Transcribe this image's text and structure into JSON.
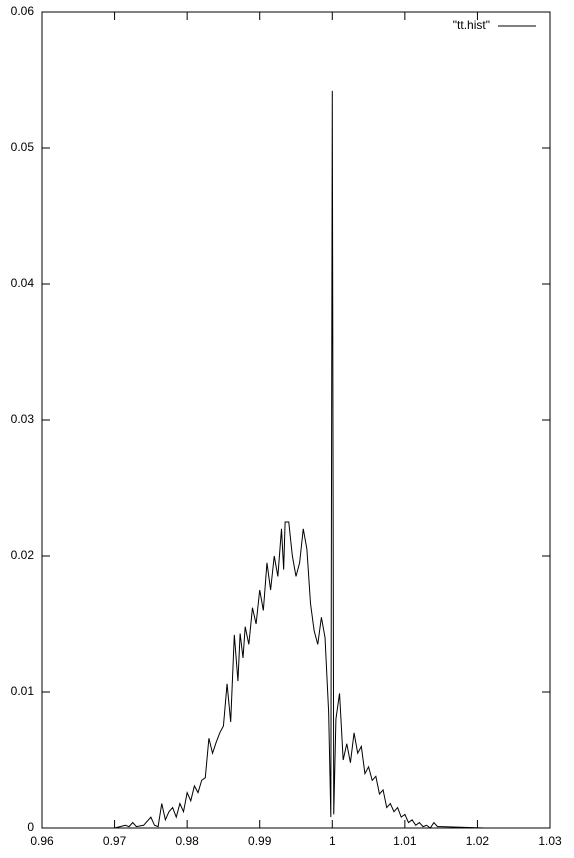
{
  "chart_data": {
    "type": "line",
    "x": [
      0.9672,
      0.97,
      0.9715,
      0.972,
      0.9725,
      0.973,
      0.974,
      0.975,
      0.9755,
      0.976,
      0.9765,
      0.977,
      0.9775,
      0.978,
      0.9785,
      0.979,
      0.9795,
      0.98,
      0.9805,
      0.981,
      0.9815,
      0.982,
      0.9825,
      0.983,
      0.9835,
      0.984,
      0.9845,
      0.985,
      0.9855,
      0.986,
      0.9865,
      0.987,
      0.9873,
      0.9877,
      0.988,
      0.9885,
      0.989,
      0.9895,
      0.99,
      0.9905,
      0.991,
      0.9915,
      0.992,
      0.9925,
      0.993,
      0.9933,
      0.9935,
      0.994,
      0.9945,
      0.995,
      0.9955,
      0.996,
      0.9965,
      0.997,
      0.9975,
      0.998,
      0.9985,
      0.999,
      0.9995,
      0.9998,
      1.0,
      1.0002,
      1.0005,
      1.001,
      1.0015,
      1.002,
      1.0025,
      1.003,
      1.0035,
      1.004,
      1.0045,
      1.005,
      1.0055,
      1.006,
      1.0065,
      1.007,
      1.0075,
      1.008,
      1.0085,
      1.009,
      1.0095,
      1.01,
      1.0105,
      1.011,
      1.0115,
      1.012,
      1.0125,
      1.013,
      1.0135,
      1.014,
      1.0145,
      1.015,
      1.021
    ],
    "series": [
      {
        "name": "\"tt.hist\"",
        "color": "#000000",
        "values": [
          0,
          0,
          0.0002,
          0.0001,
          0.0004,
          0.0001,
          0.0002,
          0.0008,
          0.0002,
          0.0001,
          0.0018,
          0.0006,
          0.0012,
          0.0015,
          0.0008,
          0.0018,
          0.0012,
          0.0026,
          0.002,
          0.0031,
          0.0026,
          0.0035,
          0.0037,
          0.0066,
          0.0055,
          0.0063,
          0.007,
          0.0075,
          0.0106,
          0.0078,
          0.0142,
          0.0108,
          0.0143,
          0.0125,
          0.0148,
          0.0135,
          0.0162,
          0.015,
          0.0175,
          0.016,
          0.0195,
          0.0175,
          0.02,
          0.0185,
          0.022,
          0.019,
          0.0225,
          0.0225,
          0.02,
          0.0185,
          0.0195,
          0.022,
          0.0205,
          0.0165,
          0.0145,
          0.0135,
          0.0155,
          0.014,
          0.0085,
          0.0008,
          0.0542,
          0.001,
          0.008,
          0.0099,
          0.005,
          0.0062,
          0.0048,
          0.007,
          0.0055,
          0.006,
          0.004,
          0.0045,
          0.0035,
          0.0038,
          0.0025,
          0.0028,
          0.0015,
          0.0018,
          0.0012,
          0.0015,
          0.0008,
          0.001,
          0.0004,
          0.0006,
          0.0002,
          0.0004,
          0.0001,
          0.0002,
          0,
          0.0004,
          0.0001,
          0.0001,
          0
        ]
      }
    ],
    "xlim": [
      0.96,
      1.03
    ],
    "xticks": [
      0.96,
      0.97,
      0.98,
      0.99,
      1,
      1.01,
      1.02,
      1.03
    ],
    "ylim": [
      0,
      0.06
    ],
    "yticks": [
      0,
      0.01,
      0.02,
      0.03,
      0.04,
      0.05,
      0.06
    ],
    "legend": "top-right"
  }
}
